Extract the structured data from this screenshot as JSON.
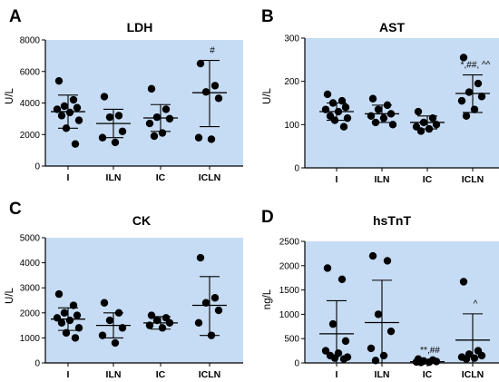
{
  "colors": {
    "plot_bg": "#c6dcf4",
    "marks": "#000000"
  },
  "chart_data": [
    {
      "type": "scatter",
      "panel": "A",
      "title": "LDH",
      "xlabel": "",
      "ylabel": "U/L",
      "ylim": [
        0,
        8000
      ],
      "yticks": [
        0,
        2000,
        4000,
        6000,
        8000
      ],
      "categories": [
        "I",
        "ILN",
        "IC",
        "ICLN"
      ],
      "points": [
        [
          5400,
          4200,
          3800,
          3700,
          3600,
          3400,
          3200,
          2900,
          2400,
          1400
        ],
        [
          4400,
          3200,
          3100,
          2200,
          1800,
          1500
        ],
        [
          4900,
          3600,
          3100,
          3000,
          2700,
          2100,
          1900
        ],
        [
          6500,
          5100,
          4700,
          4300,
          1800,
          1700
        ]
      ],
      "mean": [
        3450,
        2700,
        3050,
        4650
      ],
      "sd_upper": [
        4500,
        3600,
        3900,
        6700
      ],
      "sd_lower": [
        2400,
        1800,
        2200,
        2500
      ],
      "annotations": [
        {
          "category": "ICLN",
          "text": "#"
        }
      ]
    },
    {
      "type": "scatter",
      "panel": "B",
      "title": "AST",
      "xlabel": "",
      "ylabel": "U/L",
      "ylim": [
        0,
        300
      ],
      "yticks": [
        0,
        100,
        200,
        300
      ],
      "categories": [
        "I",
        "ILN",
        "IC",
        "ICLN"
      ],
      "points": [
        [
          170,
          155,
          150,
          140,
          135,
          130,
          120,
          115,
          110,
          95
        ],
        [
          160,
          145,
          135,
          125,
          120,
          115,
          105,
          100
        ],
        [
          130,
          115,
          105,
          100,
          95,
          90,
          85
        ],
        [
          255,
          195,
          175,
          165,
          155,
          135,
          120
        ]
      ],
      "mean": [
        130,
        125,
        105,
        172
      ],
      "sd_upper": [
        150,
        145,
        120,
        215
      ],
      "sd_lower": [
        110,
        105,
        90,
        128
      ],
      "annotations": [
        {
          "category": "ICLN",
          "text": "*,##, ^^"
        }
      ]
    },
    {
      "type": "scatter",
      "panel": "C",
      "title": "CK",
      "xlabel": "",
      "ylabel": "U/L",
      "ylim": [
        0,
        5000
      ],
      "yticks": [
        0,
        1000,
        2000,
        3000,
        4000,
        5000
      ],
      "categories": [
        "I",
        "ILN",
        "IC",
        "ICLN"
      ],
      "points": [
        [
          2750,
          2300,
          2000,
          1900,
          1800,
          1700,
          1600,
          1400,
          1200,
          1000
        ],
        [
          2400,
          2000,
          1700,
          1400,
          1100,
          800
        ],
        [
          1900,
          1800,
          1700,
          1600,
          1500,
          1400
        ],
        [
          4200,
          2600,
          2400,
          2100,
          1600,
          1100
        ]
      ],
      "mean": [
        1750,
        1500,
        1600,
        2300
      ],
      "sd_upper": [
        2200,
        2000,
        1850,
        3450
      ],
      "sd_lower": [
        1300,
        1000,
        1350,
        1100
      ],
      "annotations": []
    },
    {
      "type": "scatter",
      "panel": "D",
      "title": "hsTnT",
      "xlabel": "",
      "ylabel": "ng/L",
      "ylim": [
        0,
        2500
      ],
      "yticks": [
        0,
        500,
        1000,
        1500,
        2000,
        2500
      ],
      "categories": [
        "I",
        "ILN",
        "IC",
        "ICLN"
      ],
      "points": [
        [
          1950,
          1720,
          800,
          450,
          250,
          200,
          150,
          120,
          100,
          80
        ],
        [
          2200,
          2100,
          1000,
          650,
          300,
          150,
          50
        ],
        [
          80,
          60,
          40,
          30,
          20,
          15,
          10
        ],
        [
          1670,
          250,
          180,
          150,
          120,
          100,
          80
        ]
      ],
      "mean": [
        600,
        830,
        25,
        470
      ],
      "sd_upper": [
        1280,
        1700,
        60,
        1010
      ],
      "sd_lower": [
        0,
        0,
        0,
        0
      ],
      "annotations": [
        {
          "category": "IC",
          "text": "**,##"
        },
        {
          "category": "ICLN",
          "text": "^"
        }
      ]
    }
  ]
}
